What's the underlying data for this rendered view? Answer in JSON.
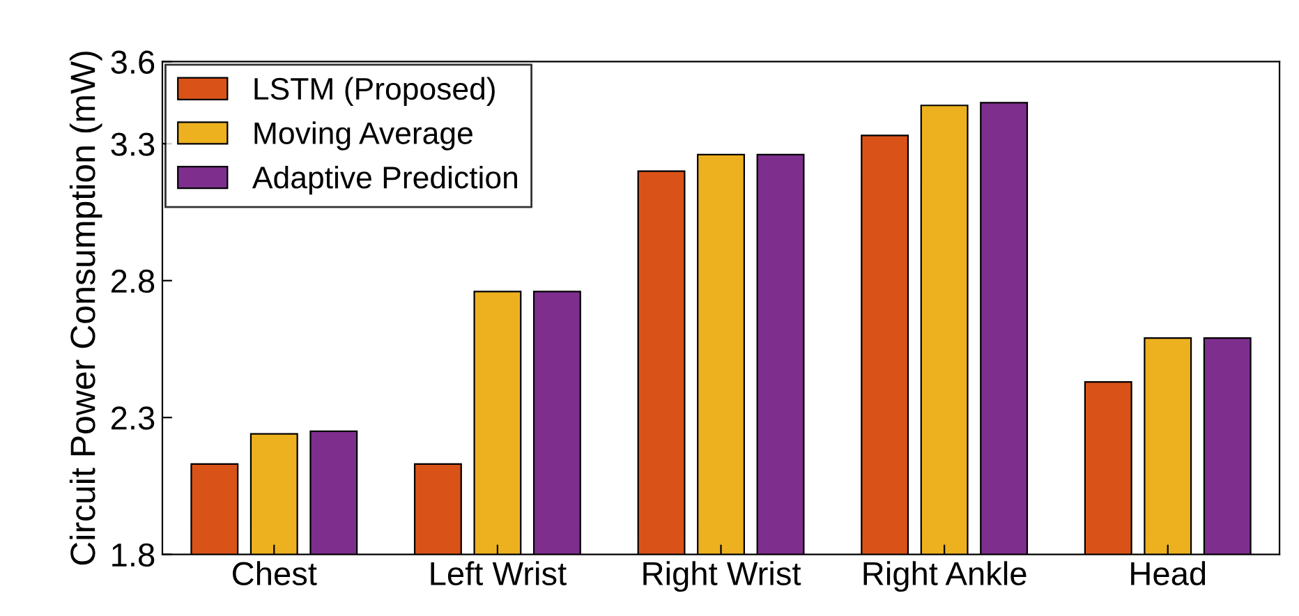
{
  "chart_data": {
    "type": "bar",
    "ylabel": "Circuit Power Consumption (mW)",
    "categories": [
      "Chest",
      "Left Wrist",
      "Right Wrist",
      "Right Ankle",
      "Head"
    ],
    "series": [
      {
        "name": "LSTM (Proposed)",
        "color": "#d95319",
        "values": [
          2.13,
          2.13,
          3.2,
          3.33,
          2.43
        ]
      },
      {
        "name": "Moving Average",
        "color": "#edb120",
        "values": [
          2.24,
          2.76,
          3.26,
          3.44,
          2.59
        ]
      },
      {
        "name": "Adaptive Prediction",
        "color": "#7e2f8e",
        "values": [
          2.25,
          2.76,
          3.26,
          3.45,
          2.59
        ]
      }
    ],
    "ylim": [
      1.8,
      3.6
    ],
    "yticks": [
      1.8,
      2.3,
      2.8,
      3.3,
      3.6
    ],
    "grid": false,
    "legend": "top left"
  }
}
